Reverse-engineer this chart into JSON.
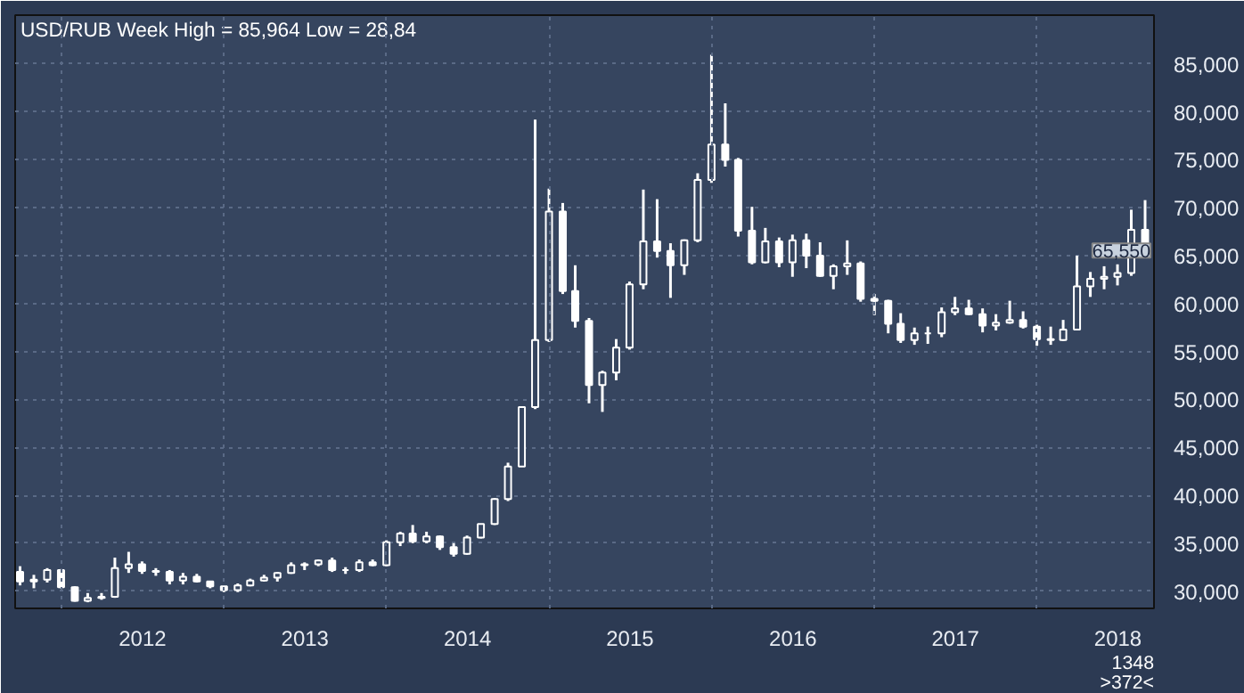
{
  "chart_data": {
    "type": "candlestick",
    "title": "USD/RUB Week High = 85,964 Low = 28,84",
    "x": [
      "2011-10",
      "2011-11",
      "2011-12",
      "2012-01",
      "2012-02",
      "2012-03",
      "2012-04",
      "2012-05",
      "2012-06",
      "2012-07",
      "2012-08",
      "2012-09",
      "2012-10",
      "2012-11",
      "2012-12",
      "2013-01",
      "2013-02",
      "2013-03",
      "2013-04",
      "2013-05",
      "2013-06",
      "2013-07",
      "2013-08",
      "2013-09",
      "2013-10",
      "2013-11",
      "2013-12",
      "2014-01",
      "2014-02",
      "2014-03",
      "2014-04",
      "2014-05",
      "2014-06",
      "2014-07",
      "2014-08",
      "2014-09",
      "2014-10",
      "2014-11",
      "2014-12",
      "2015-01",
      "2015-02",
      "2015-03",
      "2015-04",
      "2015-05",
      "2015-06",
      "2015-07",
      "2015-08",
      "2015-09",
      "2015-10",
      "2015-11",
      "2015-12",
      "2016-01",
      "2016-02",
      "2016-03",
      "2016-04",
      "2016-05",
      "2016-06",
      "2016-07",
      "2016-08",
      "2016-09",
      "2016-10",
      "2016-11",
      "2016-12",
      "2017-01",
      "2017-02",
      "2017-03",
      "2017-04",
      "2017-05",
      "2017-06",
      "2017-07",
      "2017-08",
      "2017-09",
      "2017-10",
      "2017-11",
      "2017-12",
      "2018-01",
      "2018-02",
      "2018-03",
      "2018-04",
      "2018-05",
      "2018-06",
      "2018-07",
      "2018-08",
      "2018-09"
    ],
    "ohlc": [
      [
        32000,
        32600,
        30600,
        31000
      ],
      [
        31000,
        31700,
        30300,
        31200
      ],
      [
        31200,
        32400,
        30900,
        32200
      ],
      [
        32200,
        32300,
        30300,
        30400
      ],
      [
        30400,
        30500,
        28900,
        29000
      ],
      [
        29000,
        29800,
        28840,
        29300
      ],
      [
        29300,
        29800,
        29100,
        29400
      ],
      [
        29400,
        33500,
        29300,
        32400
      ],
      [
        32400,
        34100,
        31900,
        32800
      ],
      [
        32800,
        33100,
        31800,
        32100
      ],
      [
        32100,
        32400,
        31600,
        32000
      ],
      [
        32000,
        32200,
        30700,
        31100
      ],
      [
        31100,
        31900,
        30700,
        31500
      ],
      [
        31500,
        31800,
        30900,
        31000
      ],
      [
        31000,
        31000,
        30300,
        30500
      ],
      [
        30500,
        30500,
        29900,
        30100
      ],
      [
        30100,
        30800,
        29900,
        30600
      ],
      [
        30600,
        31300,
        30500,
        31100
      ],
      [
        31100,
        31700,
        31000,
        31400
      ],
      [
        31400,
        32000,
        31000,
        31900
      ],
      [
        31900,
        33000,
        31800,
        32700
      ],
      [
        32700,
        33000,
        32200,
        32800
      ],
      [
        32800,
        33300,
        32600,
        33200
      ],
      [
        33200,
        33500,
        32000,
        32200
      ],
      [
        32200,
        32500,
        31800,
        32200
      ],
      [
        32200,
        33300,
        32000,
        33000
      ],
      [
        33000,
        33300,
        32600,
        32700
      ],
      [
        32700,
        35300,
        32600,
        35100
      ],
      [
        35100,
        36200,
        34700,
        36000
      ],
      [
        36000,
        36900,
        35000,
        35200
      ],
      [
        35200,
        36200,
        35000,
        35700
      ],
      [
        35700,
        35800,
        34300,
        34600
      ],
      [
        34600,
        35000,
        33600,
        33900
      ],
      [
        33900,
        35800,
        33800,
        35600
      ],
      [
        35600,
        37000,
        35500,
        37000
      ],
      [
        37000,
        39700,
        36900,
        39600
      ],
      [
        39600,
        43400,
        39400,
        43000
      ],
      [
        43000,
        49300,
        43000,
        49200
      ],
      [
        49200,
        79200,
        49000,
        56200
      ],
      [
        56200,
        72000,
        56000,
        69600
      ],
      [
        69600,
        70500,
        61000,
        61300
      ],
      [
        61300,
        64000,
        57500,
        58200
      ],
      [
        58200,
        58500,
        49600,
        51500
      ],
      [
        51500,
        53000,
        48700,
        52800
      ],
      [
        52800,
        56300,
        52000,
        55400
      ],
      [
        55400,
        62300,
        55200,
        62000
      ],
      [
        62000,
        71900,
        61500,
        66500
      ],
      [
        66500,
        70900,
        64800,
        65500
      ],
      [
        65500,
        66300,
        60600,
        64000
      ],
      [
        64000,
        66700,
        63000,
        66600
      ],
      [
        66600,
        73600,
        66400,
        72900
      ],
      [
        72900,
        85964,
        72600,
        76600
      ],
      [
        76600,
        80900,
        74300,
        75000
      ],
      [
        75000,
        75200,
        67000,
        67600
      ],
      [
        67600,
        70100,
        64100,
        64300
      ],
      [
        64300,
        67900,
        64200,
        66500
      ],
      [
        66500,
        66900,
        63800,
        64300
      ],
      [
        64300,
        67200,
        62800,
        66600
      ],
      [
        66600,
        67300,
        63700,
        65000
      ],
      [
        65000,
        66400,
        62800,
        62900
      ],
      [
        62900,
        64100,
        61500,
        63900
      ],
      [
        63900,
        66600,
        63000,
        64200
      ],
      [
        64200,
        64400,
        60200,
        60500
      ],
      [
        60500,
        61000,
        58800,
        60300
      ],
      [
        60300,
        60400,
        56900,
        57900
      ],
      [
        57900,
        59000,
        55900,
        56200
      ],
      [
        56200,
        57500,
        55700,
        56900
      ],
      [
        56900,
        57600,
        55800,
        56900
      ],
      [
        56900,
        59600,
        56500,
        59100
      ],
      [
        59100,
        60700,
        58800,
        59500
      ],
      [
        59500,
        60400,
        58800,
        58900
      ],
      [
        58900,
        59500,
        57000,
        57700
      ],
      [
        57700,
        58900,
        57200,
        58000
      ],
      [
        58000,
        60300,
        57900,
        58300
      ],
      [
        58300,
        59200,
        57400,
        57600
      ],
      [
        57600,
        57800,
        55600,
        56300
      ],
      [
        56300,
        57600,
        55700,
        56200
      ],
      [
        56200,
        58300,
        56100,
        57300
      ],
      [
        57300,
        65000,
        57200,
        61800
      ],
      [
        61800,
        63300,
        60700,
        62600
      ],
      [
        62600,
        63900,
        61500,
        62800
      ],
      [
        62800,
        64100,
        61900,
        63200
      ],
      [
        63200,
        69800,
        62900,
        67700
      ],
      [
        67700,
        70800,
        65500,
        65550
      ]
    ],
    "color": "#ffffff",
    "xlim": [
      "2011-09-20",
      "2018-09-21"
    ],
    "ylim": [
      28200,
      90100
    ],
    "yticks": [
      {
        "value": 30000,
        "label": "30,000"
      },
      {
        "value": 35000,
        "label": "35,000"
      },
      {
        "value": 40000,
        "label": "40,000"
      },
      {
        "value": 45000,
        "label": "45,000"
      },
      {
        "value": 50000,
        "label": "50,000"
      },
      {
        "value": 55000,
        "label": "55,000"
      },
      {
        "value": 60000,
        "label": "60,000"
      },
      {
        "value": 65000,
        "label": "65,000"
      },
      {
        "value": 70000,
        "label": "70,000"
      },
      {
        "value": 75000,
        "label": "75,000"
      },
      {
        "value": 80000,
        "label": "80,000"
      },
      {
        "value": 85000,
        "label": "85,000"
      }
    ],
    "xticks": [
      {
        "value": "2012-01-01",
        "label": null
      },
      {
        "value": "2012-07-02",
        "label": "2012"
      },
      {
        "value": "2013-01-01",
        "label": null
      },
      {
        "value": "2013-07-02",
        "label": "2013"
      },
      {
        "value": "2014-01-01",
        "label": null
      },
      {
        "value": "2014-07-02",
        "label": "2014"
      },
      {
        "value": "2015-01-01",
        "label": null
      },
      {
        "value": "2015-07-02",
        "label": "2015"
      },
      {
        "value": "2016-01-01",
        "label": null
      },
      {
        "value": "2016-07-02",
        "label": "2016"
      },
      {
        "value": "2017-01-01",
        "label": null
      },
      {
        "value": "2017-07-02",
        "label": "2017"
      },
      {
        "value": "2018-01-01",
        "label": null
      },
      {
        "value": "2018-07-02",
        "label": "2018"
      }
    ],
    "grid": true,
    "annotations": [
      {
        "text": "65,550",
        "x": "2018-09-21",
        "y": 65550
      },
      "1348",
      ">372<"
    ]
  }
}
